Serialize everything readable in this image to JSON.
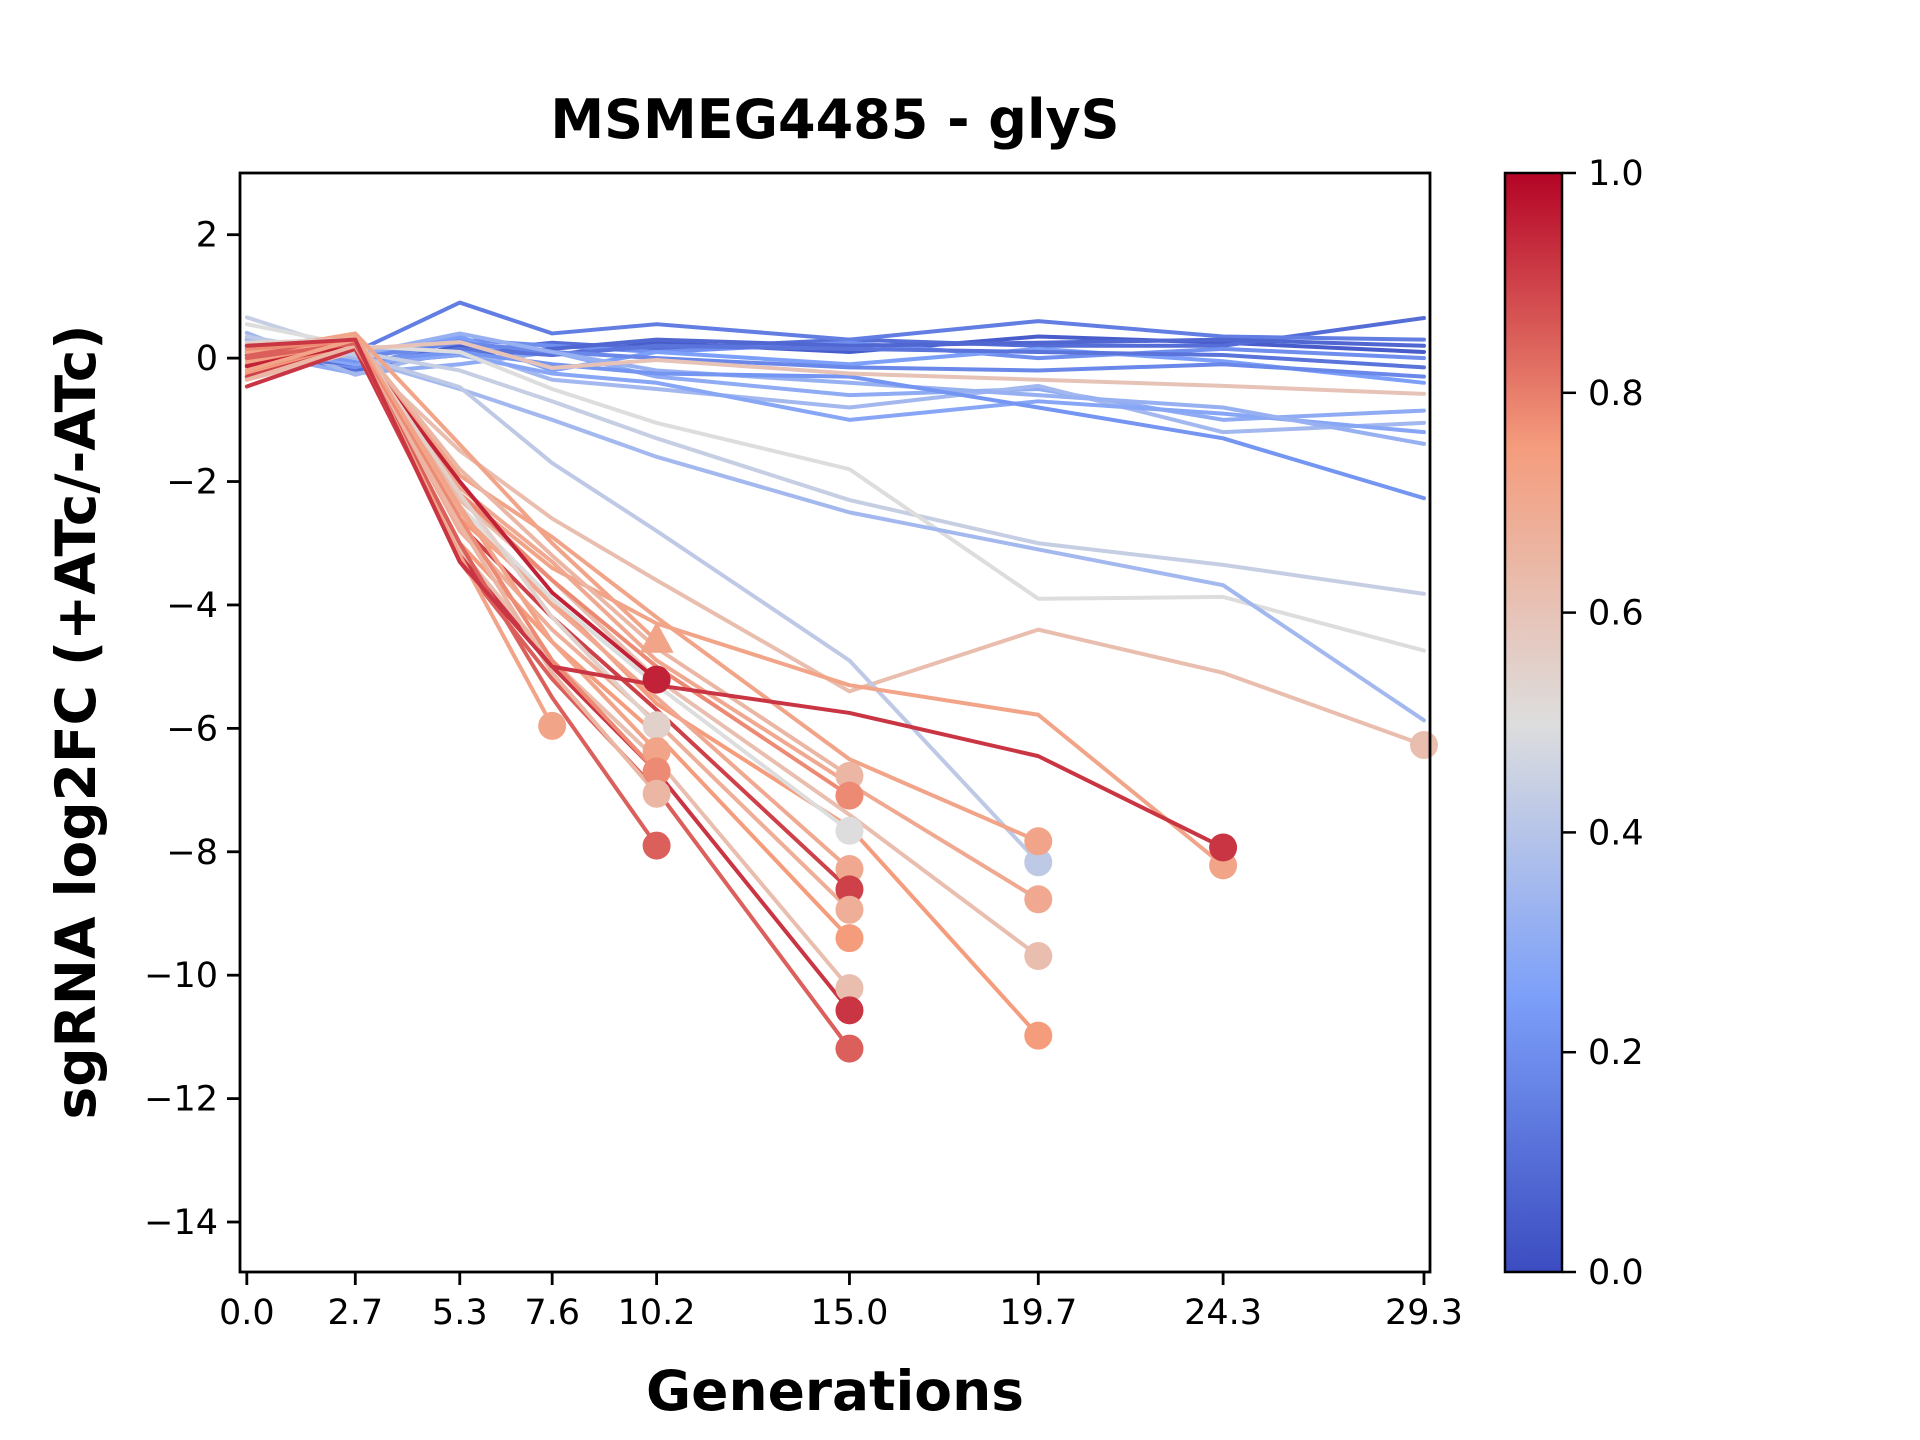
{
  "figure": {
    "title": "MSMEG4485 - glyS",
    "xlabel": "Generations",
    "ylabel": "sgRNA log2FC (+ATc/-ATc)"
  },
  "chart_data": {
    "type": "line",
    "title": "MSMEG4485 - glyS",
    "xlabel": "Generations",
    "ylabel": "sgRNA log2FC (+ATc/-ATc)",
    "grid": false,
    "legend": "colorbar",
    "x": [
      0.0,
      2.7,
      5.3,
      7.6,
      10.2,
      15.0,
      19.7,
      24.3,
      29.3
    ],
    "x_tick_labels": [
      "0.0",
      "2.7",
      "5.3",
      "7.6",
      "10.2",
      "15.0",
      "19.7",
      "24.3",
      "29.3"
    ],
    "y_tick_values": [
      2,
      0,
      -2,
      -4,
      -6,
      -8,
      -10,
      -12,
      -14
    ],
    "y_tick_labels": [
      "2",
      "0",
      "−2",
      "−4",
      "−6",
      "−8",
      "−10",
      "−12",
      "−14"
    ],
    "xlim": [
      -0.17,
      29.45
    ],
    "ylim": [
      -14.81,
      3.0
    ],
    "colormap": "coolwarm",
    "colormap_anchors": [
      "#3b4cc0",
      "#7c9ff9",
      "#dddddd",
      "#f59c7d",
      "#b40426"
    ],
    "colorbar": {
      "vmin": 0.0,
      "vmax": 1.0,
      "position": "right",
      "tick_values": [
        0.0,
        0.2,
        0.4,
        0.6,
        0.8,
        1.0
      ],
      "tick_labels": [
        "0.0",
        "0.2",
        "0.4",
        "0.6",
        "0.8",
        "1.0"
      ]
    },
    "series": [
      {
        "color_value": 0.05,
        "marker": null,
        "y": [
          0.1,
          -0.15,
          0.2,
          0.05,
          0.25,
          0.1,
          0.35,
          0.25,
          0.1
        ]
      },
      {
        "color_value": 0.1,
        "marker": null,
        "y": [
          0.05,
          -0.2,
          0.1,
          0.25,
          0.15,
          0.3,
          0.2,
          0.2,
          0.65
        ]
      },
      {
        "color_value": 0.15,
        "marker": null,
        "y": [
          0.3,
          0.1,
          0.9,
          0.4,
          0.55,
          0.3,
          0.6,
          0.35,
          0.3
        ]
      },
      {
        "color_value": 0.2,
        "marker": null,
        "y": [
          0.2,
          -0.15,
          0.3,
          0.2,
          0.1,
          0.25,
          0.0,
          0.15,
          0.0
        ]
      },
      {
        "color_value": 0.08,
        "marker": null,
        "y": [
          0.15,
          -0.1,
          0.05,
          0.15,
          0.3,
          0.2,
          0.25,
          0.3,
          0.2
        ]
      },
      {
        "color_value": 0.25,
        "marker": null,
        "y": [
          0.25,
          0.0,
          0.35,
          -0.2,
          0.1,
          -0.1,
          0.15,
          -0.05,
          -0.4
        ]
      },
      {
        "color_value": 0.3,
        "marker": null,
        "y": [
          0.1,
          -0.25,
          -0.1,
          0.1,
          -0.3,
          -0.6,
          -0.5,
          -1.0,
          -0.85
        ]
      },
      {
        "color_value": 0.35,
        "marker": null,
        "y": [
          0.41,
          -0.27,
          0.15,
          -0.35,
          -0.5,
          -0.8,
          -0.45,
          -1.2,
          -1.05
        ]
      },
      {
        "color_value": 0.12,
        "marker": null,
        "y": [
          0.05,
          -0.1,
          0.15,
          0.05,
          0.2,
          0.15,
          0.1,
          0.05,
          -0.15
        ]
      },
      {
        "color_value": 0.18,
        "marker": null,
        "y": [
          0.15,
          0.0,
          0.25,
          0.1,
          0.0,
          -0.15,
          -0.2,
          -0.1,
          -0.3
        ]
      },
      {
        "color_value": 0.28,
        "marker": null,
        "y": [
          0.2,
          -0.1,
          0.05,
          -0.25,
          -0.4,
          -1.0,
          -0.7,
          -0.9,
          -1.2
        ]
      },
      {
        "color_value": 0.32,
        "marker": null,
        "y": [
          0.3,
          0.05,
          0.4,
          0.1,
          -0.2,
          -0.4,
          -0.6,
          -0.8,
          -1.39
        ]
      },
      {
        "color_value": 0.22,
        "marker": null,
        "y": [
          0.2,
          -0.05,
          0.1,
          -0.1,
          -0.25,
          -0.3,
          -0.8,
          -1.3,
          -2.27
        ]
      },
      {
        "color_value": 0.44,
        "marker": null,
        "y": [
          0.66,
          0.1,
          -0.2,
          -0.7,
          -1.3,
          -2.3,
          -3.0,
          -3.35,
          -3.82
        ]
      },
      {
        "color_value": 0.5,
        "marker": null,
        "y": [
          0.55,
          0.2,
          0.1,
          -0.5,
          -1.05,
          -1.8,
          -3.9,
          -3.87,
          -4.74
        ]
      },
      {
        "color_value": 0.35,
        "marker": null,
        "y": [
          0.3,
          0.0,
          -0.5,
          -1.0,
          -1.6,
          -2.5,
          -3.1,
          -3.68,
          -5.87
        ]
      },
      {
        "color_value": 0.6,
        "marker": null,
        "y": [
          -0.1,
          0.15,
          0.26,
          -0.16,
          -0.03,
          -0.25,
          -0.35,
          -0.45,
          -0.58
        ]
      },
      {
        "color_value": 0.62,
        "marker": "circle",
        "y": [
          -0.35,
          0.1,
          -1.5,
          -2.6,
          -3.6,
          -5.4,
          -4.4,
          -5.1,
          -6.27
        ]
      },
      {
        "color_value": 0.42,
        "marker": "circle",
        "y": [
          0.35,
          0.05,
          -0.47,
          -1.7,
          -2.8,
          -4.9,
          -8.17
        ]
      },
      {
        "color_value": 0.72,
        "marker": "circle",
        "y": [
          -0.1,
          0.25,
          -2.2,
          -3.4,
          -4.3,
          -5.3,
          -5.78,
          -8.22
        ]
      },
      {
        "color_value": 0.72,
        "marker": "circle",
        "y": [
          0.0,
          0.3,
          -1.9,
          -2.9,
          -4.2,
          -6.5,
          -7.83
        ]
      },
      {
        "color_value": 0.7,
        "marker": "circle",
        "y": [
          -0.15,
          0.28,
          -2.1,
          -3.3,
          -4.9,
          -6.9,
          -8.77
        ]
      },
      {
        "color_value": 0.62,
        "marker": "circle",
        "y": [
          0.1,
          0.35,
          -2.3,
          -3.6,
          -5.2,
          -7.4,
          -9.69
        ]
      },
      {
        "color_value": 0.75,
        "marker": "circle",
        "y": [
          -0.25,
          0.2,
          -2.6,
          -3.9,
          -5.6,
          -7.6,
          -10.98
        ]
      },
      {
        "color_value": 0.65,
        "marker": "circle",
        "y": [
          0.05,
          0.32,
          -1.8,
          -3.2,
          -4.7,
          -6.77
        ]
      },
      {
        "color_value": 0.78,
        "marker": "circle",
        "y": [
          -0.2,
          0.25,
          -2.2,
          -3.6,
          -5.0,
          -7.09
        ]
      },
      {
        "color_value": 0.5,
        "marker": "circle",
        "y": [
          0.15,
          0.22,
          -2.4,
          -3.9,
          -5.3,
          -7.66
        ]
      },
      {
        "color_value": 0.7,
        "marker": "circle",
        "y": [
          0.0,
          0.38,
          -2.5,
          -4.0,
          -5.5,
          -8.28
        ]
      },
      {
        "color_value": 0.9,
        "marker": "circle",
        "y": [
          -0.3,
          0.18,
          -2.7,
          -4.2,
          -5.7,
          -8.61
        ]
      },
      {
        "color_value": 0.68,
        "marker": "circle",
        "y": [
          0.1,
          0.3,
          -2.8,
          -4.4,
          -5.9,
          -8.94
        ]
      },
      {
        "color_value": 0.75,
        "marker": "circle",
        "y": [
          -0.1,
          0.26,
          -3.0,
          -4.6,
          -6.1,
          -9.4
        ]
      },
      {
        "color_value": 0.62,
        "marker": "circle",
        "y": [
          0.2,
          0.35,
          -3.1,
          -4.9,
          -6.5,
          -10.21
        ]
      },
      {
        "color_value": 0.92,
        "marker": "circle",
        "y": [
          -0.46,
          0.15,
          -3.2,
          -5.0,
          -6.7,
          -10.57
        ]
      },
      {
        "color_value": 0.85,
        "marker": "circle",
        "y": [
          0.05,
          0.28,
          -3.3,
          -5.2,
          -7.0,
          -11.19
        ]
      },
      {
        "color_value": 0.72,
        "marker": "triangle",
        "y": [
          0.1,
          0.4,
          -1.4,
          -3.0,
          -4.58
        ]
      },
      {
        "color_value": 0.95,
        "marker": "circle",
        "y": [
          -0.13,
          0.22,
          -2.0,
          -3.8,
          -5.21
        ]
      },
      {
        "color_value": 0.55,
        "marker": "circle",
        "y": [
          0.25,
          0.3,
          -2.2,
          -4.2,
          -5.95
        ]
      },
      {
        "color_value": 0.72,
        "marker": "circle",
        "y": [
          -0.05,
          0.33,
          -2.4,
          -4.6,
          -6.37
        ]
      },
      {
        "color_value": 0.78,
        "marker": "circle",
        "y": [
          0.15,
          0.27,
          -2.6,
          -4.9,
          -6.7
        ]
      },
      {
        "color_value": 0.65,
        "marker": "circle",
        "y": [
          -0.35,
          0.2,
          -2.7,
          -5.1,
          -7.06
        ]
      },
      {
        "color_value": 0.85,
        "marker": "circle",
        "y": [
          0.0,
          0.24,
          -3.0,
          -5.5,
          -7.9
        ]
      },
      {
        "color_value": 0.72,
        "marker": "circle",
        "y": [
          -0.2,
          0.3,
          -3.2,
          -5.96
        ]
      },
      {
        "color_value": 0.92,
        "marker": "circle",
        "y": [
          0.2,
          0.3,
          -3.3,
          -5.0,
          -5.3,
          -5.75,
          -6.45,
          -7.93
        ]
      }
    ]
  }
}
